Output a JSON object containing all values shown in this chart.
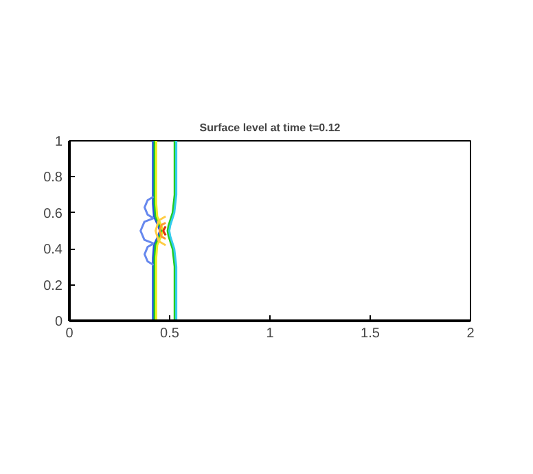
{
  "chart_data": {
    "type": "line",
    "title": "Surface level at time t=0.12",
    "xlim": [
      0,
      2
    ],
    "ylim": [
      0,
      1
    ],
    "xticks": [
      0,
      0.5,
      1,
      1.5,
      2
    ],
    "yticks": [
      0,
      0.2,
      0.4,
      0.6,
      0.8,
      1
    ],
    "marker": "none",
    "line_style": "solid",
    "series": [
      {
        "color": "#2255dd",
        "x": [
          0.417,
          0.417,
          0.422,
          0.442,
          0.452,
          0.442,
          0.422,
          0.417,
          0.417
        ],
        "values": [
          0,
          0.35,
          0.42,
          0.47,
          0.5,
          0.53,
          0.58,
          0.65,
          1
        ]
      },
      {
        "color": "#22cc22",
        "x": [
          0.425,
          0.425,
          0.43,
          0.45,
          0.46,
          0.45,
          0.43,
          0.425,
          0.425
        ],
        "values": [
          0,
          0.35,
          0.42,
          0.47,
          0.5,
          0.53,
          0.58,
          0.65,
          1
        ]
      },
      {
        "color": "#eeee22",
        "x": [
          0.433,
          0.433,
          0.438,
          0.458,
          0.468,
          0.458,
          0.438,
          0.433,
          0.433
        ],
        "values": [
          0,
          0.35,
          0.42,
          0.47,
          0.5,
          0.53,
          0.58,
          0.65,
          1
        ]
      },
      {
        "color": "#22cc22",
        "x": [
          0.525,
          0.525,
          0.515,
          0.495,
          0.49,
          0.495,
          0.515,
          0.525,
          0.525
        ],
        "values": [
          0,
          0.3,
          0.4,
          0.47,
          0.5,
          0.53,
          0.6,
          0.7,
          1
        ]
      },
      {
        "color": "#33ccee",
        "x": [
          0.533,
          0.533,
          0.523,
          0.503,
          0.498,
          0.503,
          0.523,
          0.533,
          0.533
        ],
        "values": [
          0,
          0.3,
          0.4,
          0.47,
          0.5,
          0.53,
          0.6,
          0.7,
          1
        ]
      },
      {
        "color": "#6688ee",
        "x": [
          0.42,
          0.374,
          0.355,
          0.374,
          0.42
        ],
        "values": [
          0.57,
          0.55,
          0.5,
          0.45,
          0.43
        ]
      },
      {
        "color": "#6688ee",
        "x": [
          0.42,
          0.39,
          0.375,
          0.39,
          0.42
        ],
        "values": [
          0.69,
          0.67,
          0.63,
          0.59,
          0.57
        ]
      },
      {
        "color": "#6688ee",
        "x": [
          0.42,
          0.39,
          0.375,
          0.39,
          0.42
        ],
        "values": [
          0.43,
          0.41,
          0.37,
          0.33,
          0.31
        ]
      },
      {
        "color": "#ffcc44",
        "x": [
          0.48,
          0.445,
          0.43,
          0.445,
          0.48
        ],
        "values": [
          0.58,
          0.557,
          0.5,
          0.443,
          0.42
        ]
      },
      {
        "color": "#ff9933",
        "x": [
          0.48,
          0.459,
          0.45,
          0.459,
          0.48
        ],
        "values": [
          0.545,
          0.532,
          0.5,
          0.468,
          0.455
        ]
      },
      {
        "color": "#dd3311",
        "x": [
          0.48,
          0.468,
          0.48
        ],
        "values": [
          0.525,
          0.5,
          0.475
        ]
      }
    ]
  }
}
